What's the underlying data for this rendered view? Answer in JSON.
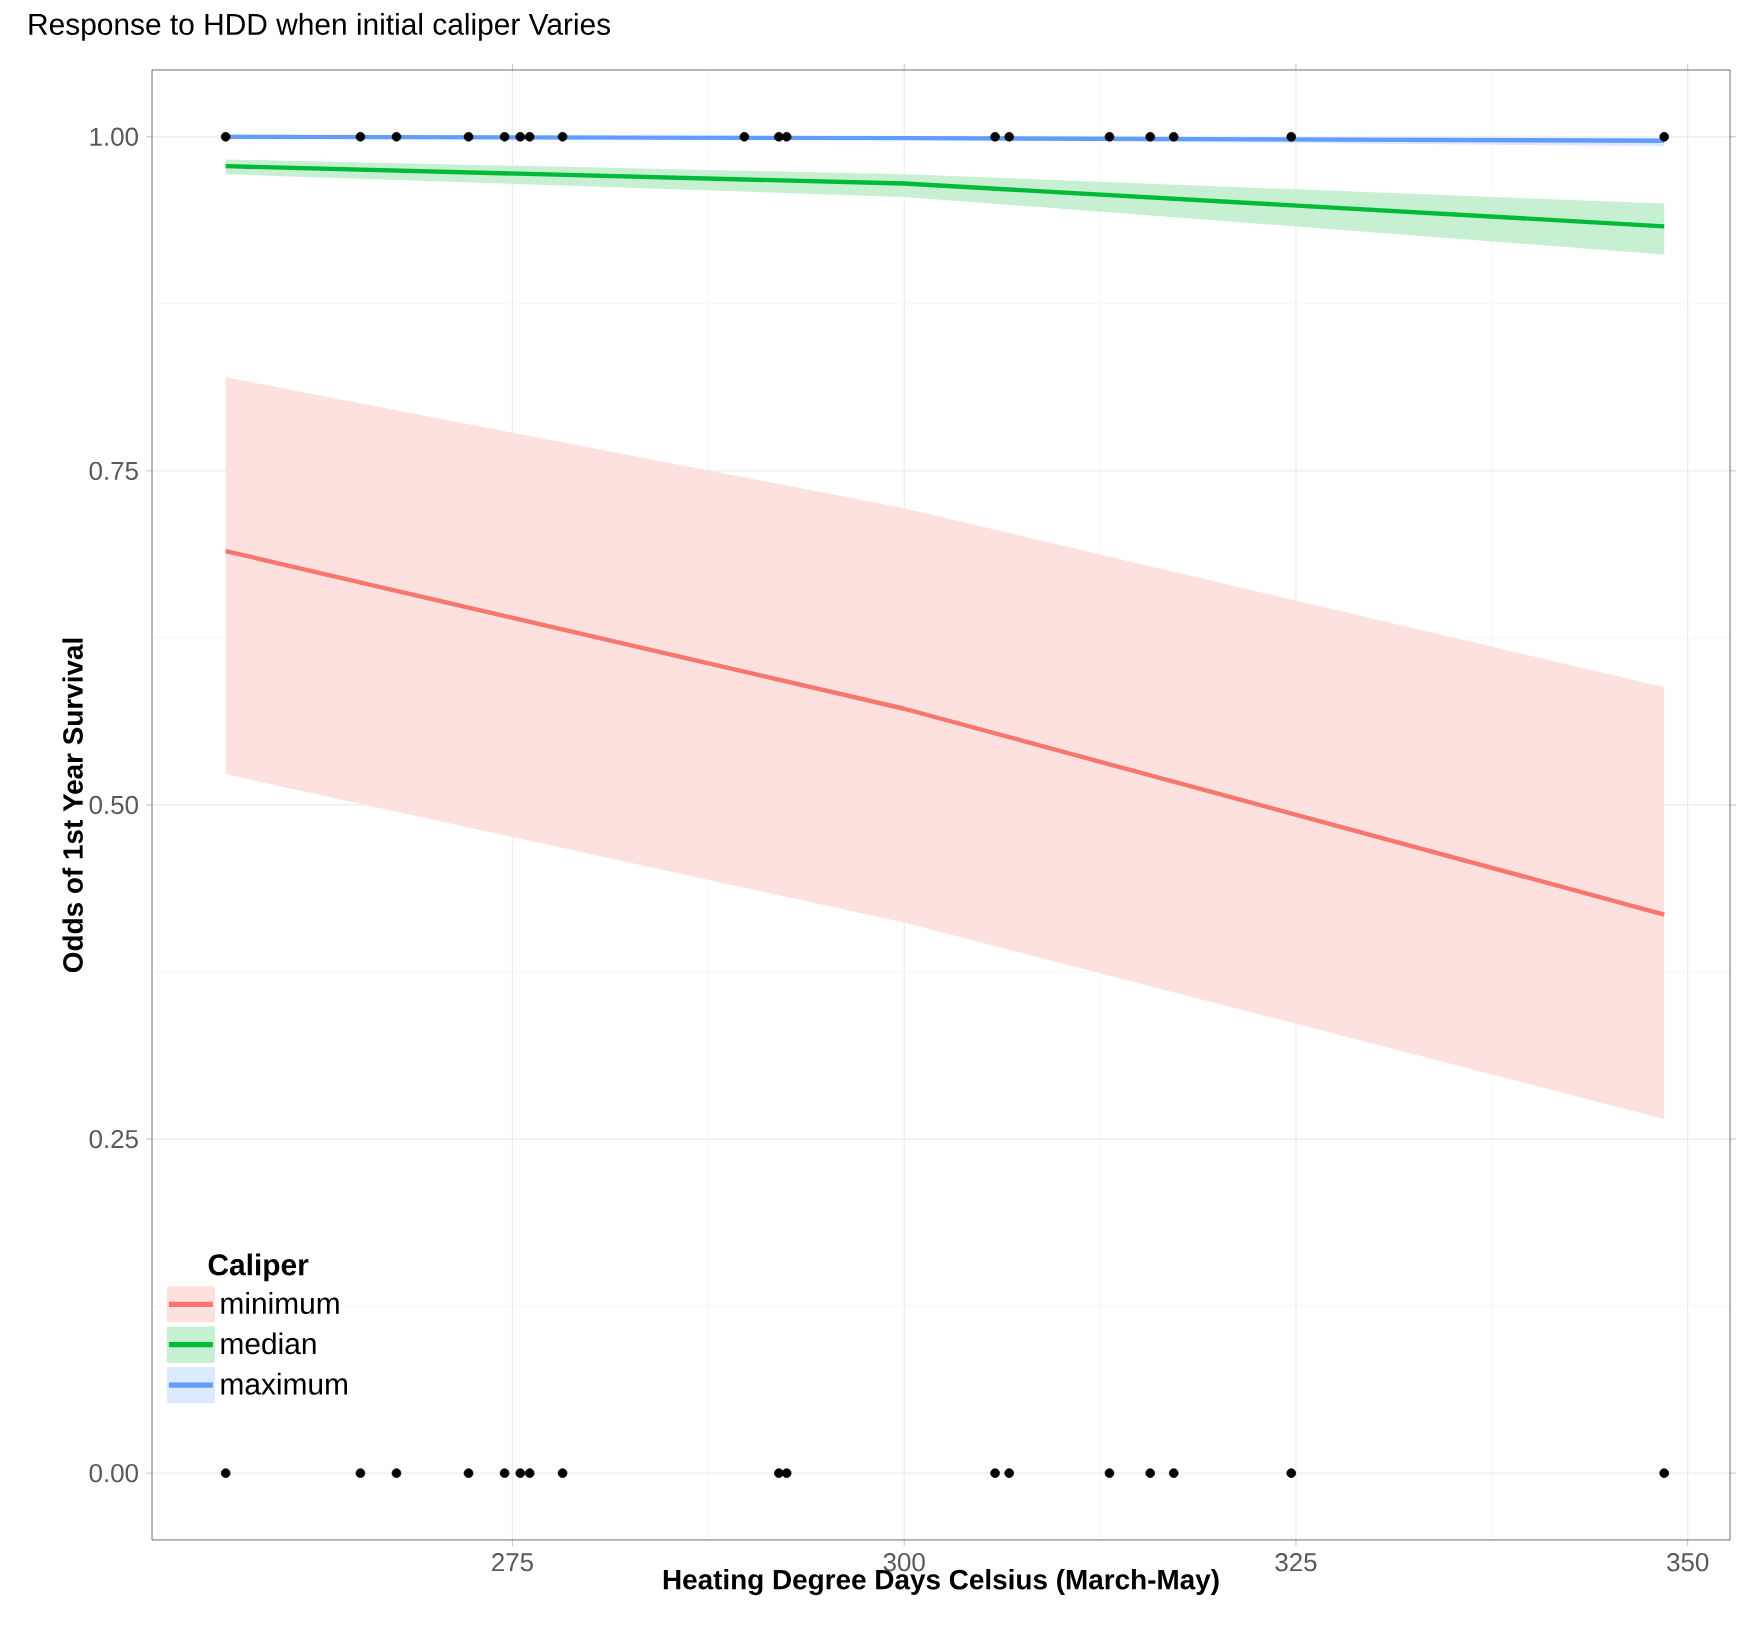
{
  "chart_data": {
    "type": "line",
    "title": "Response to HDD when initial caliper Varies",
    "xlabel": "Heating Degree Days Celsius (March-May)",
    "ylabel": "Odds of 1st Year Survival",
    "legend_title": "Caliper",
    "legend": "bottom left",
    "grid": true,
    "xlim": [
      252,
      352.7
    ],
    "ylim": [
      -0.05,
      1.05
    ],
    "xticks": [
      275,
      300,
      325,
      350
    ],
    "yticks": [
      {
        "value": 0,
        "label": "0.00"
      },
      {
        "value": 0.25,
        "label": "0.25"
      },
      {
        "value": 0.5,
        "label": "0.50"
      },
      {
        "value": 0.75,
        "label": "0.75"
      },
      {
        "value": 1,
        "label": "1.00"
      }
    ],
    "series": [
      {
        "name": "minimum",
        "color": "#f8766d",
        "x": [
          256.7,
          300,
          348.5
        ],
        "values": [
          0.69,
          0.572,
          0.418
        ],
        "lower": [
          0.523,
          0.412,
          0.265
        ],
        "upper": [
          0.82,
          0.722,
          0.588
        ]
      },
      {
        "name": "median",
        "color": "#00ba38",
        "x": [
          256.7,
          300,
          348.5
        ],
        "values": [
          0.978,
          0.965,
          0.933
        ],
        "lower": [
          0.972,
          0.955,
          0.912
        ],
        "upper": [
          0.983,
          0.972,
          0.95
        ]
      },
      {
        "name": "maximum",
        "color": "#619cff",
        "x": [
          256.7,
          300,
          348.5
        ],
        "values": [
          1.0,
          0.999,
          0.997
        ],
        "lower": [
          0.999,
          0.998,
          0.993
        ],
        "upper": [
          1.0,
          1.0,
          0.999
        ]
      },
      {
        "type": "scatter",
        "color": "#000000",
        "x": [
          256.7,
          265.3,
          267.6,
          272.2,
          274.5,
          275.5,
          276.1,
          278.2,
          289.8,
          292.0,
          292.5,
          305.8,
          306.7,
          313.1,
          315.7,
          317.2,
          324.7,
          348.5,
          256.7,
          265.3,
          267.6,
          272.2,
          274.5,
          275.5,
          276.1,
          278.2,
          292.0,
          292.5,
          305.8,
          306.7,
          313.1,
          315.7,
          317.2,
          324.7,
          348.5
        ],
        "values": [
          1,
          1,
          1,
          1,
          1,
          1,
          1,
          1,
          1,
          1,
          1,
          1,
          1,
          1,
          1,
          1,
          1,
          1,
          0,
          0,
          0,
          0,
          0,
          0,
          0,
          0,
          0,
          0,
          0,
          0,
          0,
          0,
          0,
          0,
          0
        ]
      }
    ]
  }
}
